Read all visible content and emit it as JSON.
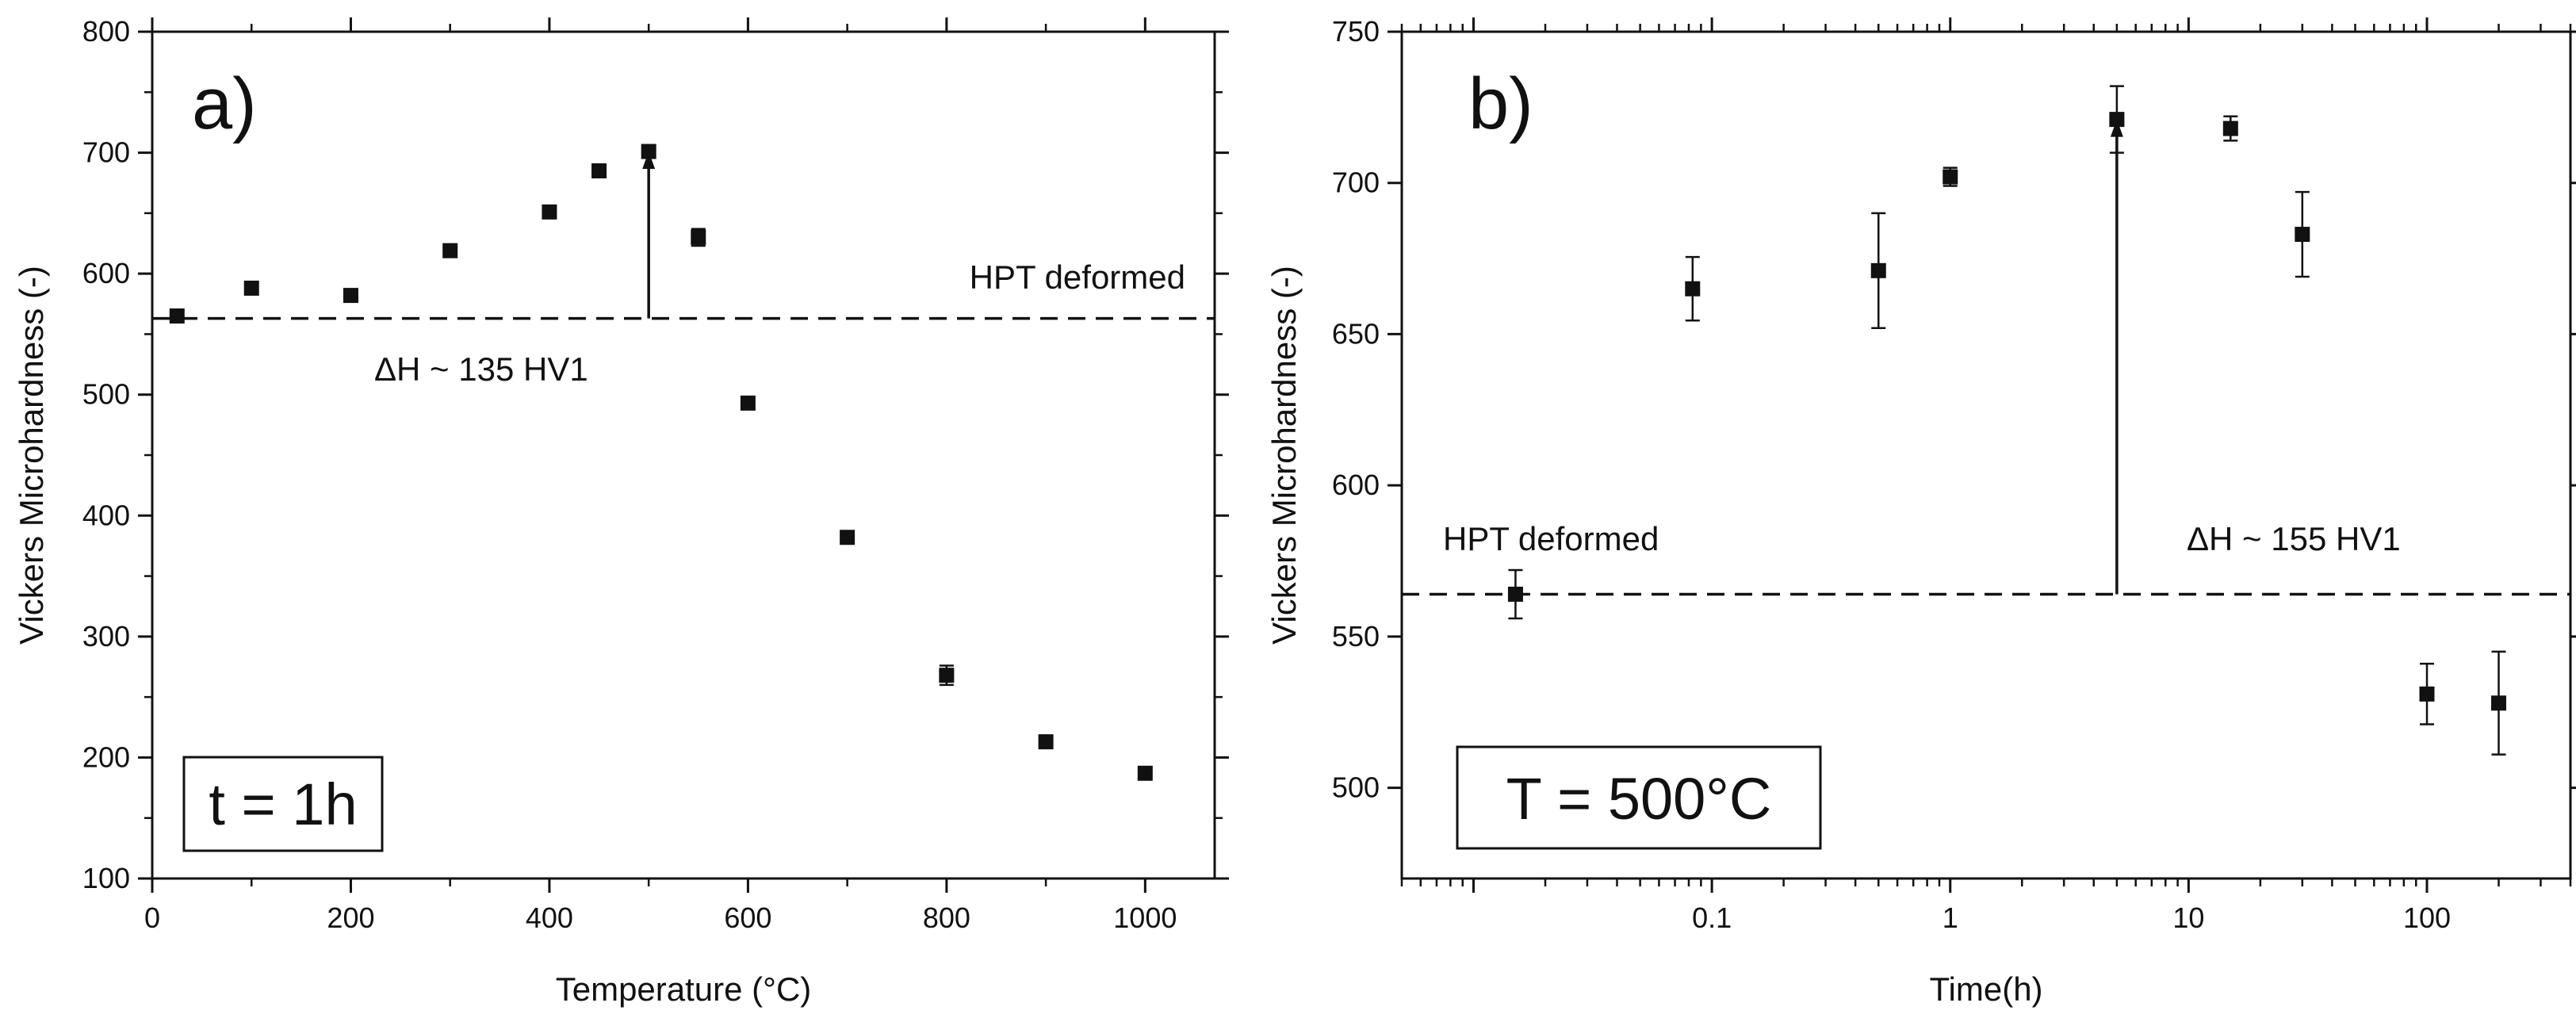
{
  "chart_data": [
    {
      "type": "scatter",
      "panel_label": "a)",
      "xlabel": "Temperature (°C)",
      "ylabel": "Vickers Microhardness (-)",
      "xlim": [
        0,
        1070
      ],
      "ylim": [
        100,
        800
      ],
      "x_ticks": [
        0,
        200,
        400,
        600,
        800,
        1000
      ],
      "y_ticks": [
        100,
        200,
        300,
        400,
        500,
        600,
        700,
        800
      ],
      "reference_line": {
        "y": 563,
        "label": "HPT deformed"
      },
      "arrow": {
        "x": 500,
        "y_from": 563,
        "y_to": 701,
        "label": "ΔH ~ 135 HV1"
      },
      "condition_label": "t = 1h",
      "series": [
        {
          "name": "HV1",
          "points": [
            {
              "x": 25,
              "y": 565,
              "err": 4
            },
            {
              "x": 100,
              "y": 588,
              "err": 4
            },
            {
              "x": 200,
              "y": 582,
              "err": 3
            },
            {
              "x": 300,
              "y": 619,
              "err": 3
            },
            {
              "x": 400,
              "y": 651,
              "err": 3
            },
            {
              "x": 450,
              "y": 685,
              "err": 4
            },
            {
              "x": 500,
              "y": 701,
              "err": 4
            },
            {
              "x": 550,
              "y": 630,
              "err": 7
            },
            {
              "x": 600,
              "y": 493,
              "err": 3
            },
            {
              "x": 700,
              "y": 382,
              "err": 3
            },
            {
              "x": 800,
              "y": 268,
              "err": 8
            },
            {
              "x": 900,
              "y": 213,
              "err": 3
            },
            {
              "x": 1000,
              "y": 187,
              "err": 3
            }
          ]
        }
      ]
    },
    {
      "type": "scatter",
      "panel_label": "b)",
      "xlabel": "Time(h)",
      "ylabel": "Vickers Microhardness (-)",
      "xscale": "log",
      "xlim": [
        0.005,
        400
      ],
      "ylim": [
        470,
        750
      ],
      "x_tick_labels": [
        {
          "value": 0.1,
          "label": "0.1"
        },
        {
          "value": 1,
          "label": "1"
        },
        {
          "value": 10,
          "label": "10"
        },
        {
          "value": 100,
          "label": "100"
        }
      ],
      "y_ticks": [
        500,
        550,
        600,
        650,
        700,
        750
      ],
      "reference_line": {
        "y": 564,
        "label": "HPT deformed"
      },
      "arrow": {
        "x": 5,
        "y_from": 564,
        "y_to": 721,
        "label": "ΔH ~ 155 HV1"
      },
      "condition_label": "T = 500°C",
      "series": [
        {
          "name": "HV1",
          "points": [
            {
              "x": 0.015,
              "y": 564,
              "err": 8
            },
            {
              "x": 0.083,
              "y": 665,
              "err": 10.5
            },
            {
              "x": 0.5,
              "y": 671,
              "err": 19
            },
            {
              "x": 1,
              "y": 702,
              "err": 3
            },
            {
              "x": 5,
              "y": 721,
              "err": 11
            },
            {
              "x": 15,
              "y": 718,
              "err": 4
            },
            {
              "x": 30,
              "y": 683,
              "err": 14
            },
            {
              "x": 100,
              "y": 531,
              "err": 10
            },
            {
              "x": 200,
              "y": 528,
              "err": 17
            }
          ]
        }
      ]
    }
  ]
}
